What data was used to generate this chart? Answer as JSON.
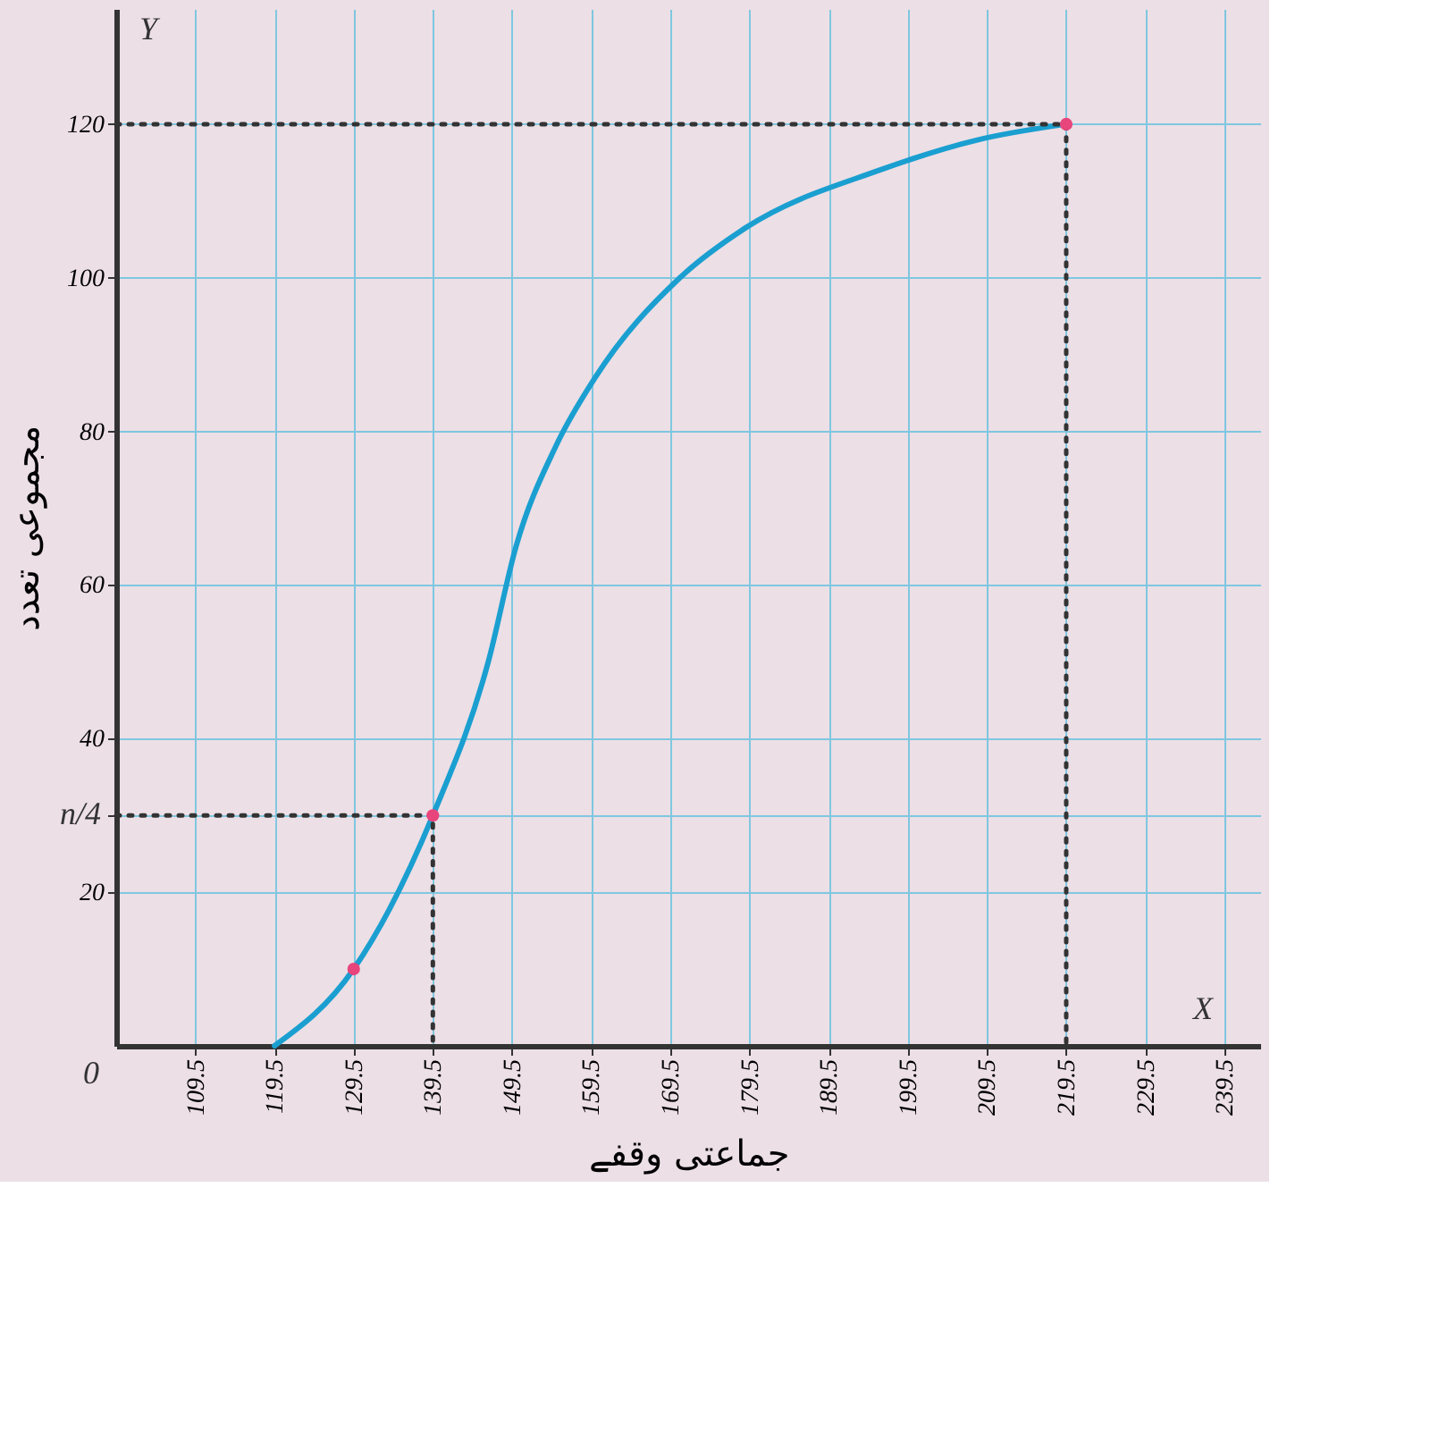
{
  "chart_data": {
    "type": "line",
    "xlabel": "جماعتی وقفے",
    "ylabel": "مجموعی تعدد",
    "xlim": [
      99.5,
      244
    ],
    "xticks": [
      109.5,
      119.5,
      129.5,
      139.5,
      149.5,
      159.5,
      169.5,
      179.5,
      189.5,
      199.5,
      209.5,
      219.5,
      229.5,
      239.5
    ],
    "ylim": [
      0,
      135
    ],
    "yticks": [
      20,
      {
        "value": 30,
        "label": null
      },
      40,
      60,
      80,
      100,
      120
    ],
    "grid": true,
    "series": [
      {
        "color": "#1a9fd0",
        "line_style": "solid",
        "x": [
          119.5,
          129.5,
          139.5,
          146.5,
          150,
          155,
          160,
          170.7,
          179.0,
          195.9,
          208.5,
          219.5
        ],
        "values": [
          0,
          10,
          30,
          50,
          65,
          78,
          87,
          100,
          106.5,
          114,
          118,
          120
        ]
      },
      {
        "type": "line",
        "color": "#333333",
        "line_style": "dotted",
        "x": [
          99.5,
          139.5,
          139.5
        ],
        "values": [
          30,
          30,
          0
        ]
      },
      {
        "type": "line",
        "color": "#333333",
        "line_style": "dotted",
        "x": [
          99.5,
          219.5,
          219.5
        ],
        "values": [
          120,
          120,
          0
        ]
      },
      {
        "type": "scatter",
        "color": "#e8457c",
        "marker": "circle",
        "x": [
          129.5,
          139.5,
          219.5
        ],
        "values": [
          10,
          30,
          120
        ]
      }
    ],
    "annotations": [
      "0",
      "Y",
      "X",
      "n/4"
    ]
  }
}
